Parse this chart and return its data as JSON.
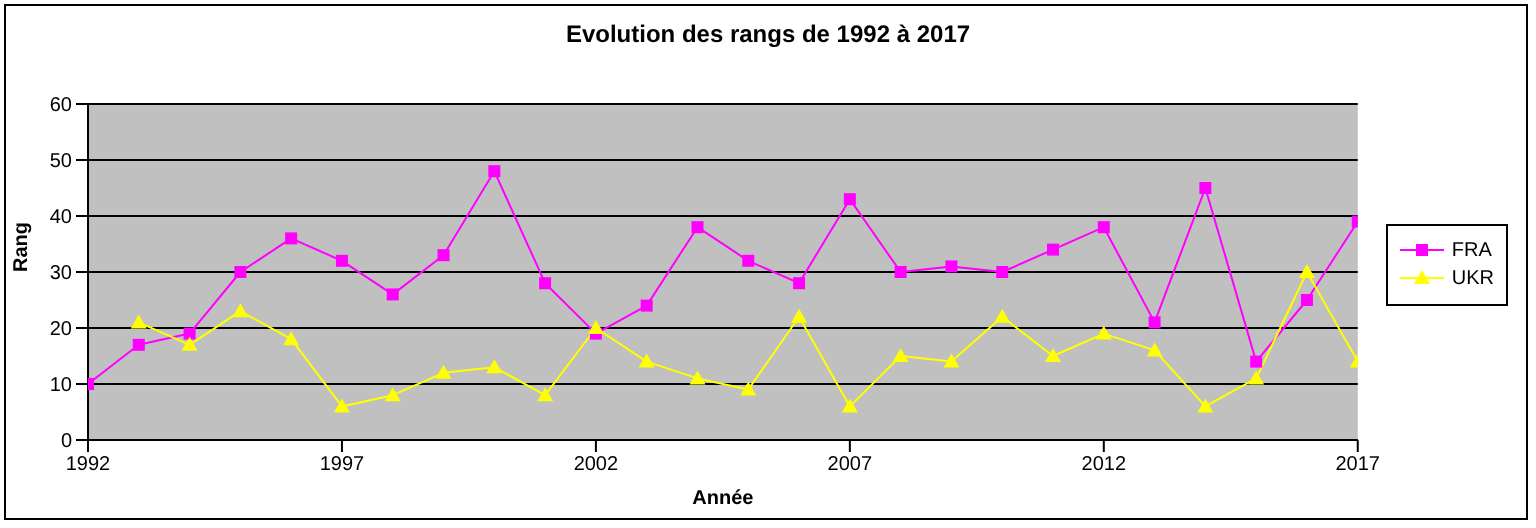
{
  "chart_data": {
    "type": "line",
    "title": "Evolution des rangs de 1992 à 2017",
    "xlabel": "Année",
    "ylabel": "Rang",
    "x": [
      1992,
      1993,
      1994,
      1995,
      1996,
      1997,
      1998,
      1999,
      2000,
      2001,
      2002,
      2003,
      2004,
      2005,
      2006,
      2007,
      2008,
      2009,
      2010,
      2011,
      2012,
      2013,
      2014,
      2015,
      2016,
      2017
    ],
    "series": [
      {
        "name": "FRA",
        "color": "#ff00ff",
        "marker": "square",
        "values": [
          10,
          17,
          19,
          30,
          36,
          32,
          26,
          33,
          48,
          28,
          19,
          24,
          38,
          32,
          28,
          43,
          30,
          31,
          30,
          34,
          38,
          21,
          45,
          14,
          25,
          39
        ]
      },
      {
        "name": "UKR",
        "color": "#ffff00",
        "marker": "triangle",
        "values": [
          null,
          21,
          17,
          23,
          18,
          6,
          8,
          12,
          13,
          8,
          20,
          14,
          11,
          9,
          22,
          6,
          15,
          14,
          22,
          15,
          19,
          16,
          6,
          11,
          30,
          14
        ]
      }
    ],
    "xlim": [
      1992,
      2017
    ],
    "xticks": [
      1992,
      1997,
      2002,
      2007,
      2012,
      2017
    ],
    "ylim": [
      0,
      60
    ],
    "yticks": [
      0,
      10,
      20,
      30,
      40,
      50,
      60
    ],
    "grid": "y",
    "legend": "right"
  }
}
